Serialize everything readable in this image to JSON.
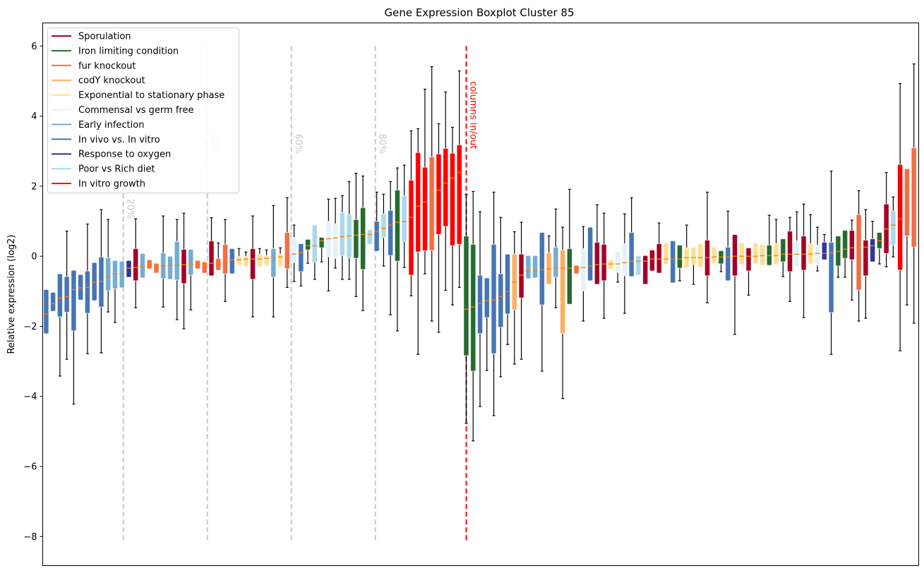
{
  "chart_data": {
    "type": "boxplot",
    "title": "Gene Expression Boxplot Cluster 85",
    "xlabel": "",
    "ylabel": "Relative expression (log2)",
    "ylim": [
      -8.83,
      6.66
    ],
    "xlim": [
      -0.5,
      126.7
    ],
    "yticks": [
      6,
      4,
      2,
      0,
      -2,
      -4,
      -6,
      -8
    ],
    "ytick_labels": [
      "6",
      "4",
      "2",
      "0",
      "−2",
      "−4",
      "−6",
      "−8"
    ],
    "grid": false,
    "legend_placement": "top-left",
    "median_color": "#ff7f0e",
    "groups": [
      {
        "name": "Sporulation",
        "color": "#a50026"
      },
      {
        "name": "Iron limiting condition",
        "color": "#246b2e"
      },
      {
        "name": "fur knockout",
        "color": "#f46d43"
      },
      {
        "name": "codY knockout",
        "color": "#fdae61"
      },
      {
        "name": "Exponential to stationary phase",
        "color": "#fee090"
      },
      {
        "name": "Commensal vs germ free",
        "color": "#e0f3f8"
      },
      {
        "name": "Early infection",
        "color": "#74add1"
      },
      {
        "name": "In vivo vs. In vitro",
        "color": "#4575b4"
      },
      {
        "name": "Response to oxygen",
        "color": "#313695"
      },
      {
        "name": "Poor vs Rich diet",
        "color": "#abd9e9"
      },
      {
        "name": "In vitro growth",
        "color": "#ff0000"
      }
    ],
    "box_fields": [
      "whisker_low",
      "q1",
      "median",
      "q3",
      "whisker_high",
      "group_index"
    ],
    "boxes": [
      [
        -2.21,
        -2.21,
        -1.65,
        -0.95,
        -0.95,
        7
      ],
      [
        -1.57,
        -1.57,
        -1.35,
        -1.03,
        -1.03,
        7
      ],
      [
        -3.42,
        -1.73,
        -1.2,
        -0.5,
        -0.5,
        7
      ],
      [
        -2.94,
        -1.6,
        -1.15,
        -0.58,
        0.72,
        7
      ],
      [
        -4.22,
        -2.13,
        -0.95,
        -0.4,
        -0.4,
        7
      ],
      [
        -1.25,
        -1.25,
        -0.9,
        -0.52,
        -0.52,
        7
      ],
      [
        -2.78,
        -1.63,
        -0.89,
        -0.42,
        0.92,
        7
      ],
      [
        -1.27,
        -1.27,
        -0.74,
        -0.18,
        -0.18,
        7
      ],
      [
        -2.76,
        -1.45,
        -0.72,
        -0.02,
        1.33,
        7
      ],
      [
        -1.59,
        -0.99,
        -0.6,
        -0.04,
        1.05,
        6
      ],
      [
        -1.89,
        -0.93,
        -0.5,
        -0.12,
        -0.12,
        6
      ],
      [
        -0.9,
        -0.9,
        -0.5,
        -0.14,
        -0.14,
        6
      ],
      [
        -0.6,
        -0.6,
        -0.34,
        -0.12,
        -0.12,
        8
      ],
      [
        -1.47,
        -0.7,
        -0.32,
        0.22,
        1.07,
        0
      ],
      [
        -0.62,
        -0.62,
        -0.3,
        0.08,
        0.08,
        6
      ],
      [
        -0.36,
        -0.36,
        -0.28,
        -0.1,
        -0.1,
        2
      ],
      [
        -0.48,
        -0.48,
        -0.28,
        -0.2,
        -0.2,
        2
      ],
      [
        -1.45,
        -0.64,
        -0.28,
        0.1,
        1.15,
        6
      ],
      [
        -0.66,
        -0.66,
        -0.26,
        0,
        0,
        6
      ],
      [
        -1.81,
        -0.68,
        -0.26,
        0.42,
        1.05,
        6
      ],
      [
        -2.07,
        -0.78,
        -0.24,
        0.2,
        1.23,
        0
      ],
      [
        -1.53,
        -0.54,
        -0.24,
        0.2,
        0.2,
        6
      ],
      [
        -0.36,
        -0.36,
        -0.24,
        -0.12,
        -0.12,
        2
      ],
      [
        -0.48,
        -0.48,
        -0.24,
        -0.16,
        -0.16,
        2
      ],
      [
        -0.56,
        -0.56,
        -0.2,
        0.44,
        1.1,
        0
      ],
      [
        -0.4,
        -0.4,
        -0.18,
        -0.06,
        0.38,
        2
      ],
      [
        -1.29,
        -0.5,
        -0.18,
        0.34,
        1.05,
        2
      ],
      [
        -0.5,
        -0.5,
        -0.1,
        0.22,
        0.22,
        7
      ],
      [
        -0.26,
        -0.26,
        -0.1,
        0,
        0.22,
        4
      ],
      [
        -0.3,
        -0.3,
        -0.08,
        0,
        0.12,
        4
      ],
      [
        -1.73,
        -0.66,
        -0.08,
        0.22,
        1.15,
        0
      ],
      [
        -0.3,
        -0.3,
        -0.08,
        0.06,
        0.22,
        4
      ],
      [
        -0.26,
        -0.26,
        -0.06,
        0.02,
        0.18,
        4
      ],
      [
        -1.73,
        -0.6,
        -0.04,
        0.22,
        1.45,
        6
      ],
      [
        -0.3,
        -0.3,
        -0.02,
        0.06,
        0.24,
        4
      ],
      [
        -0.89,
        -0.36,
        0.02,
        0.68,
        1.67,
        2
      ],
      [
        -0.72,
        -0.18,
        0.06,
        0.54,
        0.89,
        5
      ],
      [
        -0.85,
        -0.44,
        0.1,
        0.36,
        0.36,
        7
      ],
      [
        -0.2,
        0.18,
        0.3,
        0.48,
        0.48,
        1
      ],
      [
        -0.66,
        -0.18,
        0.3,
        0.89,
        0.89,
        9
      ],
      [
        -0.16,
        0.24,
        0.44,
        0.54,
        0.54,
        1
      ],
      [
        -0.99,
        -0.02,
        0.5,
        1.0,
        1.63,
        5
      ],
      [
        -0.34,
        -0.06,
        0.52,
        0.93,
        1.65,
        5
      ],
      [
        -0.66,
        0.02,
        0.56,
        1.25,
        1.73,
        9
      ],
      [
        -0.66,
        -0.04,
        0.58,
        1.19,
        2.13,
        9
      ],
      [
        -1.15,
        -0.06,
        0.6,
        1.05,
        2.37,
        1
      ],
      [
        -1.55,
        -0.38,
        0.62,
        1.39,
        2.29,
        1
      ],
      [
        0.34,
        0.34,
        0.62,
        0.76,
        0.76,
        9
      ],
      [
        0.14,
        0.14,
        0.71,
        1.0,
        1.83,
        7
      ],
      [
        -0.28,
        0.54,
        0.8,
        1.21,
        1.77,
        9
      ],
      [
        -1.67,
        0.02,
        0.89,
        1.31,
        2.13,
        7
      ],
      [
        -2.13,
        -0.14,
        0.97,
        1.89,
        2.52,
        1
      ],
      [
        -0.32,
        0.42,
        0.99,
        1.73,
        2.6,
        9
      ],
      [
        -1.13,
        -0.54,
        1.11,
        2.17,
        3.58,
        10
      ],
      [
        -2.8,
        0.12,
        1.43,
        2.96,
        3.64,
        10
      ],
      [
        -0.5,
        0.16,
        1.55,
        2.54,
        4.77,
        10
      ],
      [
        -1.85,
        0.16,
        1.83,
        2.84,
        5.41,
        2
      ],
      [
        -2.17,
        0.62,
        1.89,
        2.92,
        3.78,
        10
      ],
      [
        -0.97,
        0.85,
        2.09,
        3.08,
        4.69,
        10
      ],
      [
        -1.39,
        0.3,
        2.23,
        2.94,
        3.68,
        10
      ],
      [
        -0.89,
        0.34,
        2.39,
        3.18,
        5.29,
        10
      ],
      [
        -4.77,
        -2.84,
        -1.51,
        0.58,
        1.77,
        1
      ],
      [
        -5.27,
        -3.28,
        -1.45,
        0.34,
        1.85,
        1
      ],
      [
        -4.29,
        -2.21,
        -1.35,
        -0.54,
        1.27,
        7
      ],
      [
        -3.26,
        -1.75,
        -1.27,
        -0.62,
        -0.62,
        7
      ],
      [
        -4.55,
        -2.78,
        -1.25,
        0.34,
        1.83,
        7
      ],
      [
        -3.44,
        -2.03,
        -1.15,
        -0.5,
        1.11,
        7
      ],
      [
        -2.52,
        -1.65,
        -1.01,
        0.06,
        0.06,
        7
      ],
      [
        -3.08,
        -1.53,
        -0.74,
        0.06,
        0.7,
        3
      ],
      [
        -2.94,
        -1.19,
        -0.54,
        0.06,
        0.97,
        0
      ],
      [
        -0.64,
        -0.64,
        -0.42,
        0.02,
        0.02,
        6
      ],
      [
        -0.62,
        -0.62,
        -0.42,
        0.02,
        0.02,
        6
      ],
      [
        -3.28,
        -1.39,
        -0.38,
        0.68,
        0.68,
        7
      ],
      [
        -0.8,
        -0.8,
        -0.36,
        0.1,
        0.58,
        3
      ],
      [
        -1.47,
        -0.6,
        -0.34,
        0.26,
        1.35,
        6
      ],
      [
        -4.06,
        -2.21,
        -0.34,
        0.18,
        0.83,
        3
      ],
      [
        -1.37,
        -1.37,
        -0.34,
        0.22,
        1.91,
        1
      ],
      [
        -0.5,
        -0.5,
        -0.34,
        -0.26,
        -0.26,
        2
      ],
      [
        -1.85,
        -0.99,
        -0.32,
        0.22,
        0.85,
        5
      ],
      [
        -0.7,
        -0.7,
        -0.28,
        0.83,
        0.83,
        7
      ],
      [
        -0.8,
        -0.8,
        -0.24,
        0.4,
        1.47,
        0
      ],
      [
        -1.77,
        -0.7,
        -0.22,
        0.34,
        1.23,
        0
      ],
      [
        -0.38,
        -0.38,
        -0.22,
        -0.1,
        -0.1,
        4
      ],
      [
        -0.74,
        -0.46,
        -0.22,
        0.14,
        0.14,
        5
      ],
      [
        -1.63,
        -0.56,
        -0.18,
        0.36,
        1.21,
        5
      ],
      [
        -0.58,
        -0.58,
        -0.14,
        0.68,
        1.67,
        7
      ],
      [
        -0.54,
        -0.54,
        -0.14,
        0.02,
        0.02,
        9
      ],
      [
        -0.8,
        -0.8,
        -0.14,
        0.02,
        0.02,
        0
      ],
      [
        -0.42,
        -0.42,
        -0.08,
        0.18,
        0.18,
        0
      ],
      [
        -0.48,
        -0.48,
        -0.08,
        0.36,
        0.95,
        0
      ],
      [
        -0.24,
        -0.24,
        -0.08,
        0.38,
        0.38,
        4
      ],
      [
        -0.76,
        -0.76,
        -0.08,
        0.44,
        0.44,
        7
      ],
      [
        -0.7,
        -0.34,
        -0.08,
        0.32,
        0.32,
        1
      ],
      [
        -0.34,
        -0.34,
        -0.04,
        0.24,
        0.89,
        4
      ],
      [
        -0.8,
        -0.24,
        -0.04,
        0.26,
        0.26,
        4
      ],
      [
        -0.32,
        -0.32,
        -0.04,
        0.36,
        0.36,
        4
      ],
      [
        -1.33,
        -0.56,
        -0.04,
        0.46,
        1.83,
        0
      ],
      [
        -0.2,
        -0.2,
        -0.02,
        0.26,
        0.26,
        4
      ],
      [
        -0.44,
        -0.22,
        -0.02,
        0.16,
        0.16,
        1
      ],
      [
        -0.7,
        -0.7,
        -0.02,
        0.26,
        1.29,
        7
      ],
      [
        -2.23,
        -0.56,
        0,
        0.62,
        0.62,
        0
      ],
      [
        -0.24,
        -0.24,
        0,
        0.38,
        0.38,
        4
      ],
      [
        -1.11,
        -0.42,
        0,
        0.24,
        0.24,
        0
      ],
      [
        -0.22,
        -0.22,
        0,
        0.38,
        0.38,
        4
      ],
      [
        -0.26,
        -0.26,
        0.02,
        0.34,
        0.34,
        4
      ],
      [
        -0.26,
        -0.26,
        0.02,
        0.32,
        1.17,
        1
      ],
      [
        -0.24,
        -0.24,
        0.02,
        0.36,
        1.05,
        4
      ],
      [
        -0.58,
        -0.16,
        0.06,
        0.5,
        0.5,
        1
      ],
      [
        -1.29,
        -0.44,
        0.06,
        0.72,
        1.11,
        0
      ],
      [
        -0.3,
        -0.3,
        0.06,
        0.44,
        1.27,
        5
      ],
      [
        -1.75,
        -0.4,
        0.06,
        0.58,
        1.49,
        0
      ],
      [
        -0.22,
        -0.22,
        0.06,
        0.36,
        1.19,
        4
      ],
      [
        -0.42,
        -0.26,
        0.08,
        0.32,
        0.83,
        5
      ],
      [
        -0.1,
        -0.1,
        0.08,
        0.4,
        0.62,
        8
      ],
      [
        -2.8,
        -1.61,
        0.1,
        0.4,
        2.43,
        7
      ],
      [
        -0.6,
        -0.28,
        0.14,
        0.58,
        0.58,
        1
      ],
      [
        -0.6,
        -0.06,
        0.2,
        0.74,
        0.74,
        1
      ],
      [
        -1.25,
        -0.1,
        0.24,
        0.74,
        1.03,
        0
      ],
      [
        -1.85,
        -0.97,
        0.24,
        1.19,
        1.87,
        2
      ],
      [
        -1.77,
        -0.56,
        0.26,
        0.46,
        1.33,
        0
      ],
      [
        -0.16,
        -0.16,
        0.3,
        0.5,
        1.0,
        8
      ],
      [
        -0.22,
        0.22,
        0.44,
        0.68,
        0.68,
        1
      ],
      [
        -0.3,
        0.08,
        0.78,
        1.49,
        2.39,
        0
      ],
      [
        -0.02,
        0.32,
        0.89,
        1.29,
        1.69,
        9
      ],
      [
        -2.7,
        -0.4,
        1.07,
        2.62,
        4.93,
        10
      ],
      [
        -1.39,
        0.58,
        1.89,
        2.5,
        2.5,
        2
      ],
      [
        -1.91,
        0.26,
        2.64,
        3.1,
        5.49,
        2
      ]
    ],
    "percent_lines": [
      {
        "x": 11.2,
        "label": "20%"
      },
      {
        "x": 23.4,
        "label": "40%"
      },
      {
        "x": 35.6,
        "label": "60%"
      },
      {
        "x": 47.8,
        "label": "80%"
      }
    ],
    "percent_line_color": "#c8c8c8",
    "split_line": {
      "x": 61,
      "label": "columns in/out",
      "color": "#ff0000"
    },
    "vline_range": [
      -8.1,
      6
    ]
  }
}
